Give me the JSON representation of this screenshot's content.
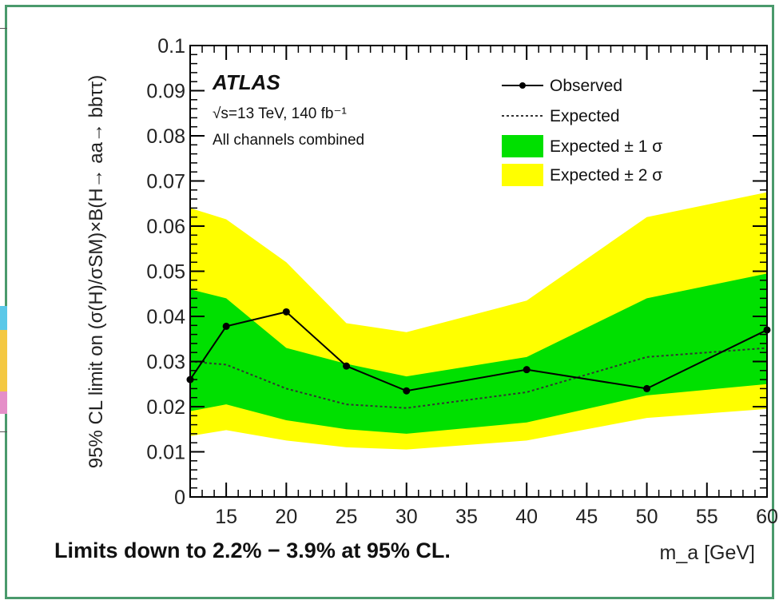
{
  "footer_note": "Limits down to 2.2% − 3.9% at 95% CL.",
  "chart_data": {
    "type": "line",
    "brand": "ATLAS",
    "subtitle_energy": "√s=13 TeV, 140 fb⁻¹",
    "subtitle_channels": "All channels combined",
    "ylabel": "95% CL limit on (σ(H)/σSM)×B(H→ aa→ bbττ)",
    "xlabel": "m_a [GeV]",
    "xlim": [
      12,
      60
    ],
    "ylim": [
      0,
      0.1
    ],
    "x_ticks": [
      15,
      20,
      25,
      30,
      35,
      40,
      45,
      50,
      55,
      60
    ],
    "y_ticks": [
      0,
      0.01,
      0.02,
      0.03,
      0.04,
      0.05,
      0.06,
      0.07,
      0.08,
      0.09,
      0.1
    ],
    "y_tick_labels": [
      "0",
      "0.01",
      "0.02",
      "0.03",
      "0.04",
      "0.05",
      "0.06",
      "0.07",
      "0.08",
      "0.09",
      "0.1"
    ],
    "x_tick_labels": [
      "15",
      "20",
      "25",
      "30",
      "35",
      "40",
      "45",
      "50",
      "55",
      "60"
    ],
    "legend_position": "top-right",
    "legend": [
      "Observed",
      "Expected",
      "Expected ± 1 σ",
      "Expected ± 2 σ"
    ],
    "x": [
      12,
      15,
      20,
      25,
      30,
      40,
      50,
      60
    ],
    "observed": [
      0.026,
      0.0378,
      0.041,
      0.029,
      0.0235,
      0.0282,
      0.024,
      0.037
    ],
    "expected": [
      0.03,
      0.0293,
      0.024,
      0.0205,
      0.0197,
      0.0232,
      0.031,
      0.033
    ],
    "band_1sigma_low": [
      0.019,
      0.0205,
      0.017,
      0.015,
      0.014,
      0.0165,
      0.0225,
      0.025
    ],
    "band_1sigma_high": [
      0.046,
      0.044,
      0.033,
      0.0295,
      0.0267,
      0.031,
      0.044,
      0.0495
    ],
    "band_2sigma_low": [
      0.0135,
      0.0148,
      0.0125,
      0.011,
      0.0105,
      0.0125,
      0.0175,
      0.0195
    ],
    "band_2sigma_high": [
      0.064,
      0.0615,
      0.052,
      0.0385,
      0.0365,
      0.0435,
      0.062,
      0.0675
    ],
    "colors": {
      "band1": "#00e000",
      "band2": "#ffff00",
      "line": "#000000"
    }
  }
}
